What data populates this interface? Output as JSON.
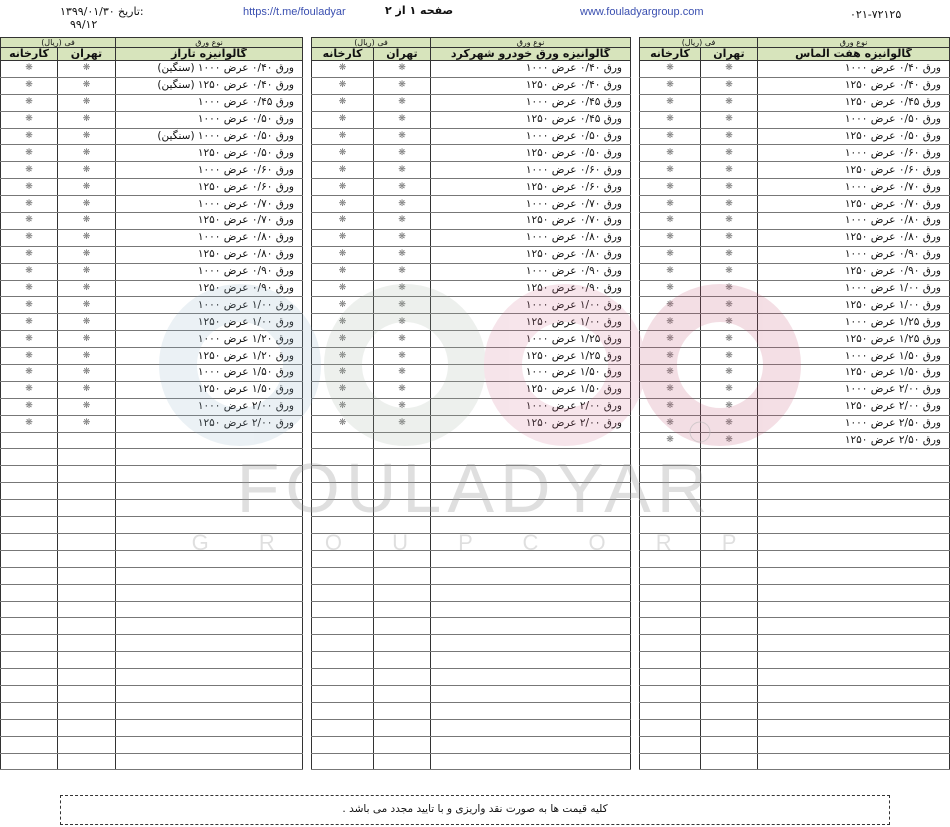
{
  "header": {
    "date_label": "تاریخ:",
    "date_value": "۱۳۹۹/۰۱/۳۰",
    "doc_code": "۹۹/۱۲",
    "telegram_link": "https://t.me/fouladyar",
    "page_info": "صفحه ۱ از ۲",
    "website": "www.fouladyargroup.com",
    "phone": "۰۲۱-۷۲۱۲۵"
  },
  "watermark": {
    "brand": "FOULADYAR",
    "sub": "G R O U P   C O R P",
    "accent": "#e8b4c4"
  },
  "colors": {
    "header_bg": "#d7e4bc"
  },
  "price_placeholder": "❋",
  "total_rows": 42,
  "tables": [
    {
      "type_header": "نوع ورق",
      "price_header": "فی (ریال)",
      "title": "گالوانیزه تاراز",
      "col_tehran": "تهران",
      "col_factory": "کارخانه",
      "items": [
        "ورق ۰/۴۰ عرض ۱۰۰۰ (سنگین)",
        "ورق ۰/۴۰ عرض ۱۲۵۰ (سنگین)",
        "ورق ۰/۴۵ عرض ۱۰۰۰",
        "ورق ۰/۵۰ عرض ۱۰۰۰",
        "ورق ۰/۵۰ عرض ۱۰۰۰ (سنگین)",
        "ورق ۰/۵۰ عرض ۱۲۵۰",
        "ورق ۰/۶۰ عرض ۱۰۰۰",
        "ورق ۰/۶۰ عرض ۱۲۵۰",
        "ورق ۰/۷۰ عرض ۱۰۰۰",
        "ورق ۰/۷۰ عرض ۱۲۵۰",
        "ورق ۰/۸۰ عرض ۱۰۰۰",
        "ورق ۰/۸۰ عرض ۱۲۵۰",
        "ورق ۰/۹۰ عرض ۱۰۰۰",
        "ورق ۰/۹۰ عرض ۱۲۵۰",
        "ورق ۱/۰۰ عرض ۱۰۰۰",
        "ورق ۱/۰۰ عرض ۱۲۵۰",
        "ورق ۱/۲۰ عرض ۱۰۰۰",
        "ورق ۱/۲۰ عرض ۱۲۵۰",
        "ورق ۱/۵۰ عرض ۱۰۰۰",
        "ورق ۱/۵۰ عرض ۱۲۵۰",
        "ورق ۲/۰۰ عرض ۱۰۰۰",
        "ورق ۲/۰۰ عرض ۱۲۵۰"
      ]
    },
    {
      "type_header": "نوع ورق",
      "price_header": "فی (ریال)",
      "title": "گالوانیزه ورق خودرو شهرکرد",
      "col_tehran": "تهران",
      "col_factory": "کارخانه",
      "items": [
        "ورق ۰/۴۰ عرض ۱۰۰۰",
        "ورق ۰/۴۰ عرض ۱۲۵۰",
        "ورق ۰/۴۵ عرض ۱۰۰۰",
        "ورق ۰/۴۵ عرض ۱۲۵۰",
        "ورق ۰/۵۰ عرض ۱۰۰۰",
        "ورق ۰/۵۰ عرض ۱۲۵۰",
        "ورق ۰/۶۰ عرض ۱۰۰۰",
        "ورق ۰/۶۰ عرض ۱۲۵۰",
        "ورق ۰/۷۰ عرض ۱۰۰۰",
        "ورق ۰/۷۰ عرض ۱۲۵۰",
        "ورق ۰/۸۰ عرض ۱۰۰۰",
        "ورق ۰/۸۰ عرض ۱۲۵۰",
        "ورق ۰/۹۰ عرض ۱۰۰۰",
        "ورق ۰/۹۰ عرض ۱۲۵۰",
        "ورق ۱/۰۰ عرض ۱۰۰۰",
        "ورق ۱/۰۰ عرض ۱۲۵۰",
        "ورق ۱/۲۵ عرض ۱۰۰۰",
        "ورق ۱/۲۵ عرض ۱۲۵۰",
        "ورق ۱/۵۰ عرض ۱۰۰۰",
        "ورق ۱/۵۰ عرض ۱۲۵۰",
        "ورق ۲/۰۰ عرض ۱۰۰۰",
        "ورق ۲/۰۰ عرض ۱۲۵۰"
      ]
    },
    {
      "type_header": "نوع ورق",
      "price_header": "فی (ریال)",
      "title": "گالوانیزه هفت الماس",
      "col_tehran": "تهران",
      "col_factory": "کارخانه",
      "items": [
        "ورق ۰/۴۰ عرض ۱۰۰۰",
        "ورق ۰/۴۰ عرض ۱۲۵۰",
        "ورق ۰/۴۵ عرض ۱۲۵۰",
        "ورق ۰/۵۰ عرض ۱۰۰۰",
        "ورق ۰/۵۰ عرض ۱۲۵۰",
        "ورق ۰/۶۰ عرض ۱۰۰۰",
        "ورق ۰/۶۰ عرض ۱۲۵۰",
        "ورق ۰/۷۰ عرض ۱۰۰۰",
        "ورق ۰/۷۰ عرض ۱۲۵۰",
        "ورق ۰/۸۰ عرض ۱۰۰۰",
        "ورق ۰/۸۰ عرض ۱۲۵۰",
        "ورق ۰/۹۰ عرض ۱۰۰۰",
        "ورق ۰/۹۰ عرض ۱۲۵۰",
        "ورق ۱/۰۰ عرض ۱۰۰۰",
        "ورق ۱/۰۰ عرض ۱۲۵۰",
        "ورق ۱/۲۵ عرض ۱۰۰۰",
        "ورق ۱/۲۵ عرض ۱۲۵۰",
        "ورق ۱/۵۰ عرض ۱۰۰۰",
        "ورق ۱/۵۰ عرض ۱۲۵۰",
        "ورق ۲/۰۰ عرض ۱۰۰۰",
        "ورق ۲/۰۰ عرض ۱۲۵۰",
        "ورق ۲/۵۰ عرض ۱۰۰۰",
        "ورق ۲/۵۰ عرض ۱۲۵۰"
      ]
    }
  ],
  "footer": {
    "note": "کلیه قیمت ها به صورت نقد واریزی و با تایید مجدد می باشد ."
  }
}
